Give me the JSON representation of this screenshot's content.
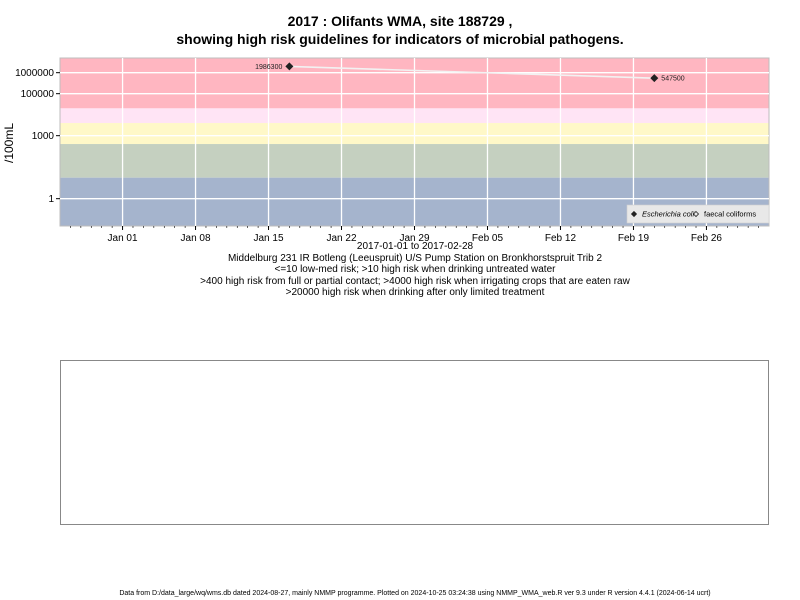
{
  "chart_data": {
    "type": "scatter",
    "title_line1": "2017 : Olifants WMA, site 188729 ,",
    "title_line2": "showing high risk guidelines for indicators of microbial pathogens.",
    "ylabel": "/100mL",
    "y_scale": "log10",
    "ylim": [
      0.05,
      5000000
    ],
    "xlim": [
      "2016-12-26",
      "2017-03-04"
    ],
    "yticks": [
      {
        "value": 1,
        "label": "1"
      },
      {
        "value": 1000,
        "label": "1000"
      },
      {
        "value": 100000,
        "label": "100000"
      },
      {
        "value": 1000000,
        "label": "1000000"
      }
    ],
    "xticks": [
      {
        "date": "2017-01-01",
        "label": "Jan 01"
      },
      {
        "date": "2017-01-08",
        "label": "Jan 08"
      },
      {
        "date": "2017-01-15",
        "label": "Jan 15"
      },
      {
        "date": "2017-01-22",
        "label": "Jan 22"
      },
      {
        "date": "2017-01-29",
        "label": "Jan 29"
      },
      {
        "date": "2017-02-05",
        "label": "Feb 05"
      },
      {
        "date": "2017-02-12",
        "label": "Feb 12"
      },
      {
        "date": "2017-02-19",
        "label": "Feb 19"
      },
      {
        "date": "2017-02-26",
        "label": "Feb 26"
      }
    ],
    "bands": [
      {
        "from": 20000,
        "to": 5000000,
        "color": "#ffb6c1"
      },
      {
        "from": 4000,
        "to": 20000,
        "color": "#ffe4f5"
      },
      {
        "from": 400,
        "to": 4000,
        "color": "#fff8c8"
      },
      {
        "from": 10,
        "to": 400,
        "color": "#c5d0c0"
      },
      {
        "from": 0.05,
        "to": 10,
        "color": "#a5b4cd"
      }
    ],
    "series": [
      {
        "name": "Escherichia coli",
        "marker": "filled-diamond",
        "points": [
          {
            "date": "2017-01-17",
            "value": 1986300,
            "label": "1986300"
          },
          {
            "date": "2017-02-21",
            "value": 547500,
            "label": "547500"
          }
        ]
      },
      {
        "name": "faecal coliforms",
        "marker": "open-diamond",
        "points": []
      }
    ],
    "legend_position": "bottom-right",
    "xlabel_range": "2017-01-01 to 2017-02-28",
    "caption_lines": [
      "Middelburg 231 IR Botleng (Leeuspruit) U/S Pump Station on Bronkhorstspruit Trib 2",
      "<=10 low-med risk; >10 high risk when drinking untreated water",
      ">400 high risk from full or partial contact; >4000 high risk when irrigating crops that are eaten raw",
      ">20000 high risk when drinking after only limited treatment"
    ],
    "grid": true
  },
  "footer": "Data from D:/data_large/wq/wms.db dated 2024-08-27, mainly NMMP programme. Plotted on 2024-10-25 03:24:38 using NMMP_WMA_web.R ver 9.3 under R version 4.4.1 (2024-06-14 ucrt)"
}
